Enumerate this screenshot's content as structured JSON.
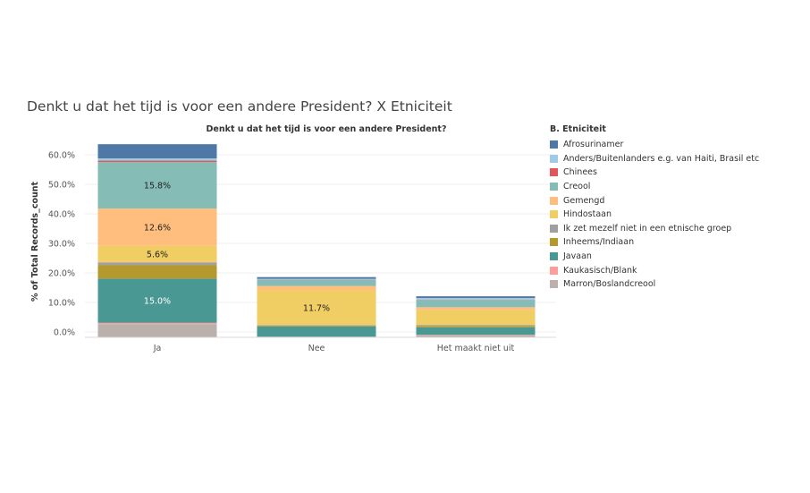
{
  "page_title": "Denkt u dat het tijd is voor een andere President? X Etniciteit",
  "chart_data": {
    "type": "bar",
    "stacked": true,
    "title": "Denkt u dat het tijd is voor een andere President?",
    "xlabel": "",
    "ylabel": "% of Total Records_count",
    "ylim": [
      0,
      66
    ],
    "yticks": [
      "0.0%",
      "10.0%",
      "20.0%",
      "30.0%",
      "40.0%",
      "50.0%",
      "60.0%"
    ],
    "ytick_values": [
      0,
      10,
      20,
      30,
      40,
      50,
      60
    ],
    "grid": true,
    "legend_position": "right",
    "categories": [
      "Ja",
      "Nee",
      "Het maakt niet uit"
    ],
    "series": [
      {
        "name": "Marron/Boslandcreool",
        "color": "#bab0ac",
        "values": [
          4.5,
          0.2,
          0.8
        ]
      },
      {
        "name": "Kaukasisch/Blank",
        "color": "#ff9d9a",
        "values": [
          0.4,
          0.0,
          0.1
        ]
      },
      {
        "name": "Javaan",
        "color": "#499894",
        "values": [
          15.0,
          3.5,
          2.5
        ]
      },
      {
        "name": "Inheems/Indiaan",
        "color": "#b6992d",
        "values": [
          4.5,
          0.3,
          0.5
        ]
      },
      {
        "name": "Ik zet mezelf niet in een etnische groep",
        "color": "#a0a0a0",
        "values": [
          1.0,
          0.2,
          0.3
        ]
      },
      {
        "name": "Hindostaan",
        "color": "#f1ce63",
        "values": [
          5.6,
          11.7,
          5.0
        ]
      },
      {
        "name": "Gemengd",
        "color": "#ffbe7d",
        "values": [
          12.6,
          1.5,
          1.0
        ]
      },
      {
        "name": "Creool",
        "color": "#86bcb6",
        "values": [
          15.8,
          2.0,
          2.5
        ]
      },
      {
        "name": "Chinees",
        "color": "#e15759",
        "values": [
          0.5,
          0.1,
          0.1
        ]
      },
      {
        "name": "Anders/Buitenlanders e.g. van Haiti, Brasil etc",
        "color": "#a0cbe8",
        "values": [
          0.7,
          0.3,
          0.5
        ]
      },
      {
        "name": "Afrosurinamer",
        "color": "#4e79a7",
        "values": [
          4.8,
          0.6,
          0.6
        ]
      }
    ],
    "data_labels": [
      {
        "series": "Javaan",
        "category": "Ja",
        "text": "15.0%"
      },
      {
        "series": "Hindostaan",
        "category": "Ja",
        "text": "5.6%"
      },
      {
        "series": "Gemengd",
        "category": "Ja",
        "text": "12.6%"
      },
      {
        "series": "Creool",
        "category": "Ja",
        "text": "15.8%"
      },
      {
        "series": "Hindostaan",
        "category": "Nee",
        "text": "11.7%"
      }
    ]
  },
  "legend": {
    "title": "B. Etniciteit",
    "items": [
      {
        "label": "Afrosurinamer",
        "color": "#4e79a7"
      },
      {
        "label": "Anders/Buitenlanders e.g. van Haiti, Brasil etc",
        "color": "#a0cbe8"
      },
      {
        "label": "Chinees",
        "color": "#e15759"
      },
      {
        "label": "Creool",
        "color": "#86bcb6"
      },
      {
        "label": "Gemengd",
        "color": "#ffbe7d"
      },
      {
        "label": "Hindostaan",
        "color": "#f1ce63"
      },
      {
        "label": "Ik zet mezelf niet in een etnische groep",
        "color": "#a0a0a0"
      },
      {
        "label": "Inheems/Indiaan",
        "color": "#b6992d"
      },
      {
        "label": "Javaan",
        "color": "#499894"
      },
      {
        "label": "Kaukasisch/Blank",
        "color": "#ff9d9a"
      },
      {
        "label": "Marron/Boslandcreool",
        "color": "#bab0ac"
      }
    ]
  }
}
